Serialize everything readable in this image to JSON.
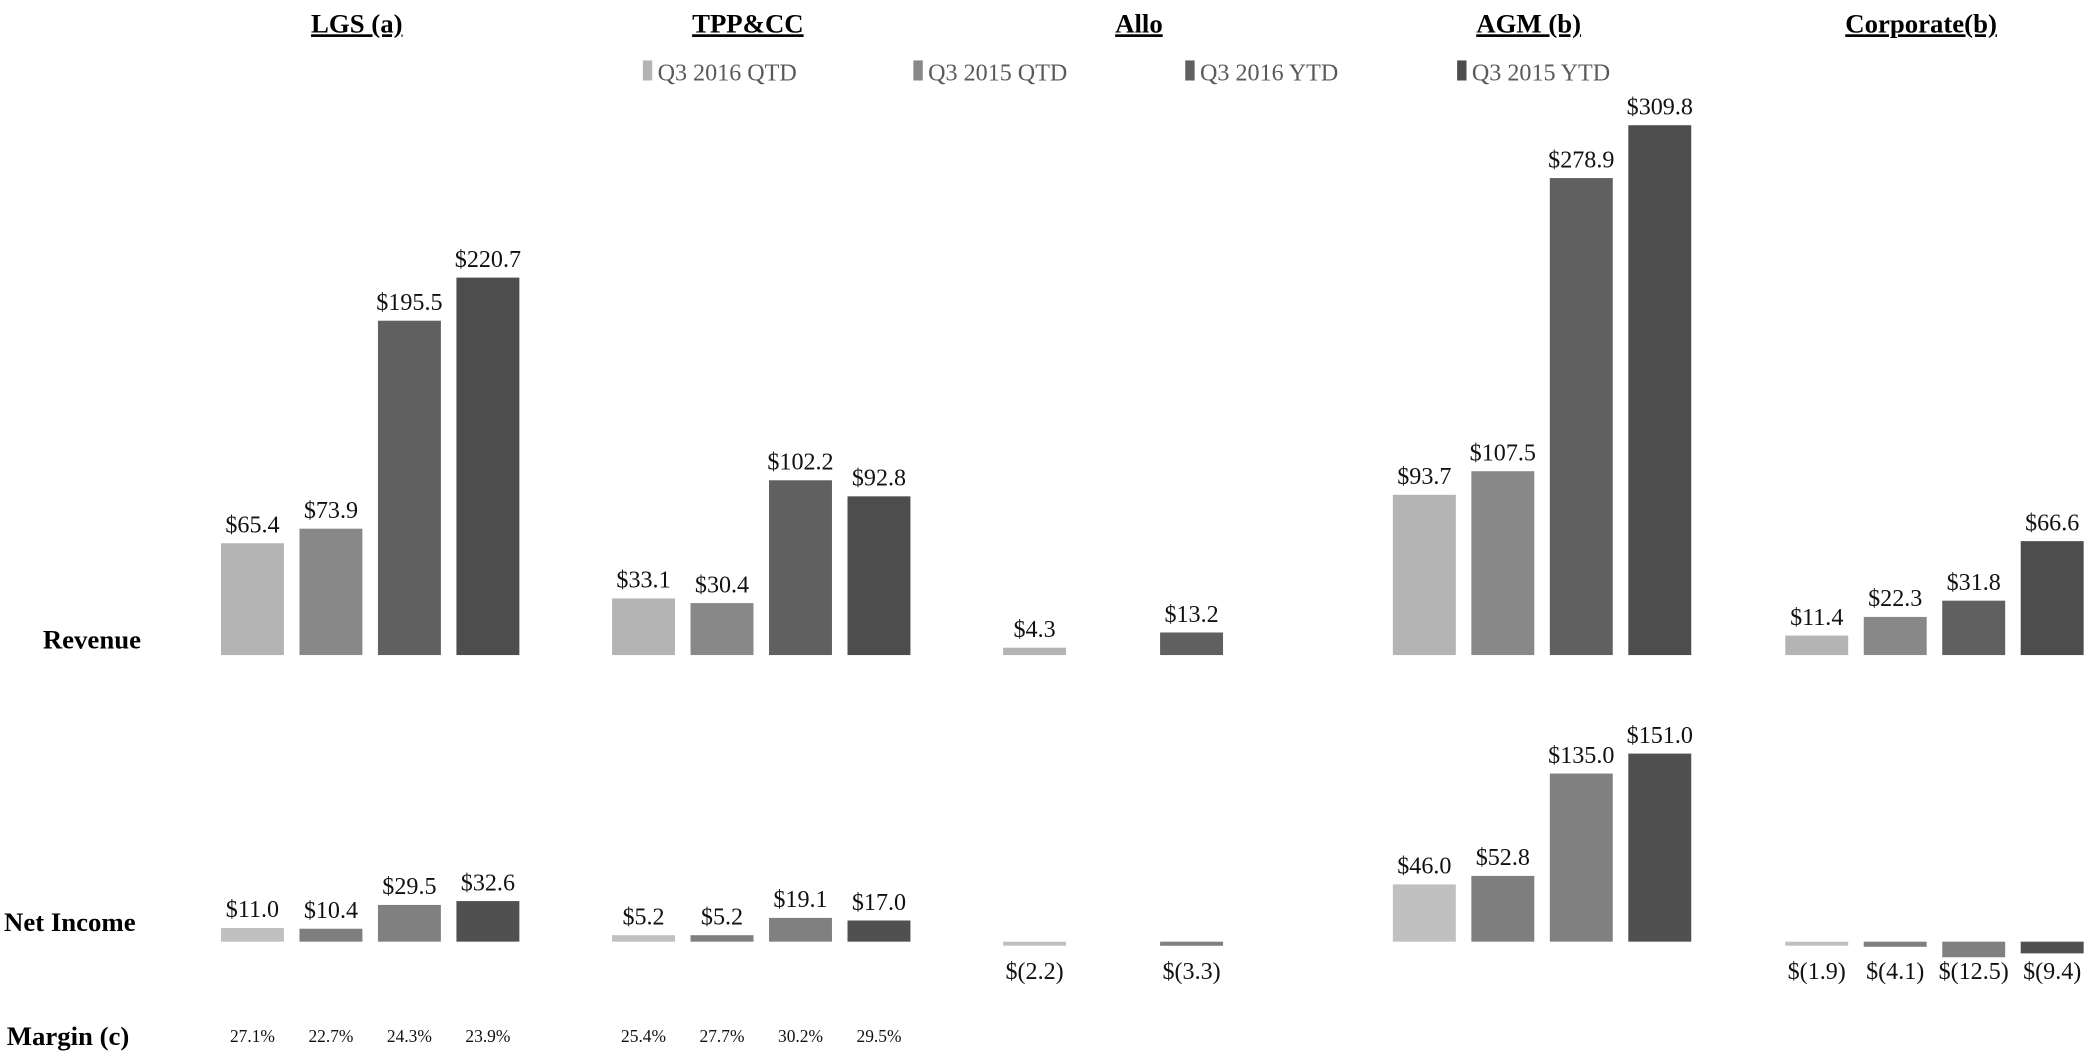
{
  "chart_data": {
    "type": "bar",
    "legend_position": "top",
    "series": [
      {
        "name": "Q3 2016 QTD",
        "color": "#b4b4b4",
        "ni_color": "#c0c0c0"
      },
      {
        "name": "Q3 2015 QTD",
        "color": "#888888",
        "ni_color": "#7f7f7f"
      },
      {
        "name": "Q3 2016 YTD",
        "color": "#606060",
        "ni_color": "#808080"
      },
      {
        "name": "Q3 2015 YTD",
        "color": "#4d4d4d",
        "ni_color": "#505050"
      }
    ],
    "row_labels": {
      "revenue": "Revenue",
      "net_income": "Net Income",
      "margin": "Margin (c)"
    },
    "segments": [
      {
        "title": "LGS (a)",
        "revenue": [
          65.4,
          73.9,
          195.5,
          220.7
        ],
        "revenue_labels": [
          "$65.4",
          "$73.9",
          "$195.5",
          "$220.7"
        ],
        "net_income": [
          11.0,
          10.4,
          29.5,
          32.6
        ],
        "net_income_labels": [
          "$11.0",
          "$10.4",
          "$29.5",
          "$32.6"
        ],
        "margin": [
          "27.1%",
          "22.7%",
          "24.3%",
          "23.9%"
        ]
      },
      {
        "title": "TPP&CC",
        "revenue": [
          33.1,
          30.4,
          102.2,
          92.8
        ],
        "revenue_labels": [
          "$33.1",
          "$30.4",
          "$102.2",
          "$92.8"
        ],
        "net_income": [
          5.2,
          5.2,
          19.1,
          17.0
        ],
        "net_income_labels": [
          "$5.2",
          "$5.2",
          "$19.1",
          "$17.0"
        ],
        "margin": [
          "25.4%",
          "27.7%",
          "30.2%",
          "29.5%"
        ]
      },
      {
        "title": "Allo",
        "revenue": [
          4.3,
          null,
          13.2,
          null
        ],
        "revenue_labels": [
          "$4.3",
          null,
          "$13.2",
          null
        ],
        "net_income": [
          -2.2,
          null,
          -3.3,
          null
        ],
        "net_income_labels": [
          "$(2.2)",
          null,
          "$(3.3)",
          null
        ],
        "margin": [
          null,
          null,
          null,
          null
        ]
      },
      {
        "title": "AGM (b)",
        "revenue": [
          93.7,
          107.5,
          278.9,
          309.8
        ],
        "revenue_labels": [
          "$93.7",
          "$107.5",
          "$278.9",
          "$309.8"
        ],
        "net_income": [
          46.0,
          52.8,
          135.0,
          151.0
        ],
        "net_income_labels": [
          "$46.0",
          "$52.8",
          "$135.0",
          "$151.0"
        ],
        "margin": [
          null,
          null,
          null,
          null
        ]
      },
      {
        "title": "Corporate(b)",
        "revenue": [
          11.4,
          22.3,
          31.8,
          66.6
        ],
        "revenue_labels": [
          "$11.4",
          "$22.3",
          "$31.8",
          "$66.6"
        ],
        "net_income": [
          -1.9,
          -4.1,
          -12.5,
          -9.4
        ],
        "net_income_labels": [
          "$(1.9)",
          "$(4.1)",
          "$(12.5)",
          "$(9.4)"
        ],
        "margin": [
          null,
          null,
          null,
          null
        ]
      }
    ]
  }
}
